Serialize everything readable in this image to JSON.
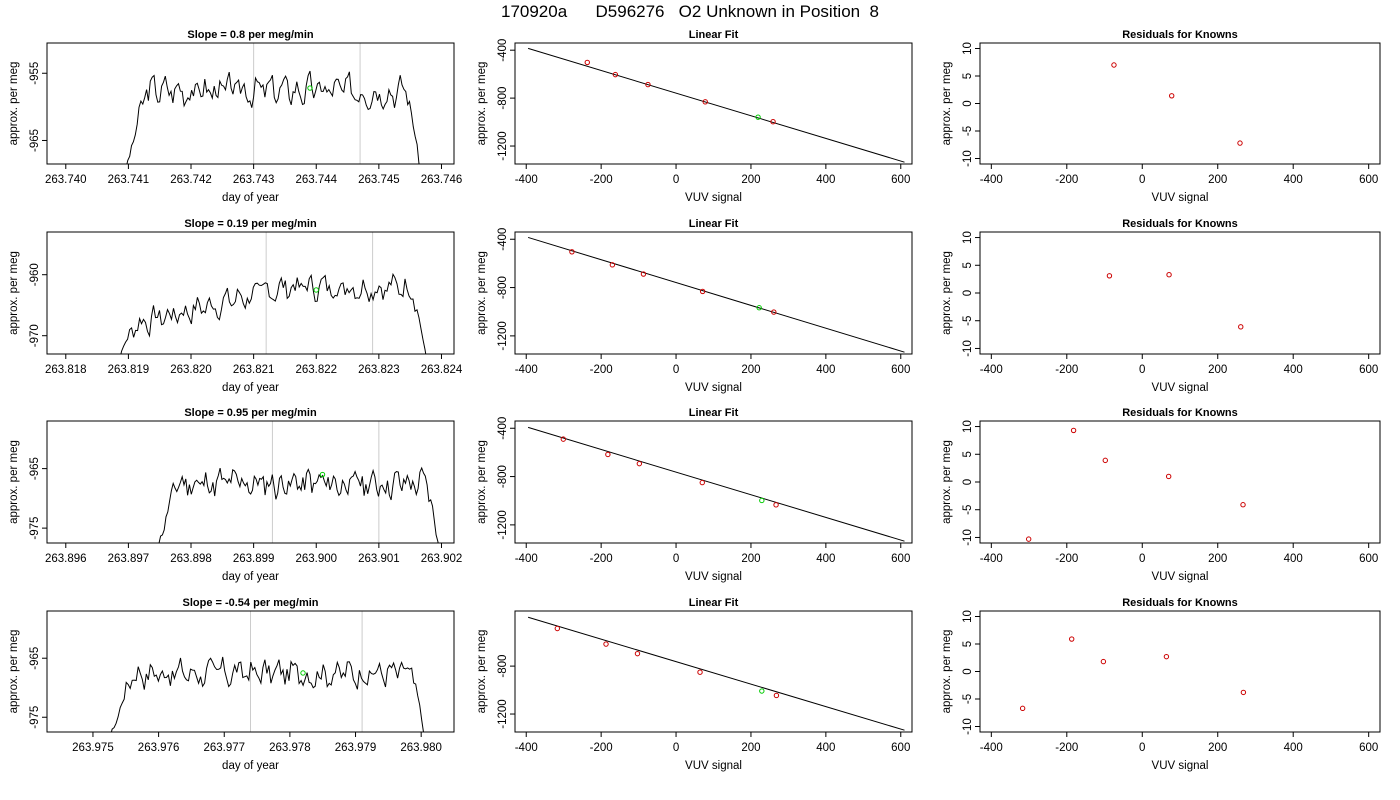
{
  "page": {
    "title": "170920a      D596276   O2 Unknown in Position  8"
  },
  "colors": {
    "trace": "#000000",
    "vline": "#cccccc",
    "marker": "#00cc00",
    "known": "#cc0000"
  },
  "chart_data": [
    {
      "type": "line",
      "row": 0,
      "col": 0,
      "title": "Slope =  0.8  per meg/min",
      "xlabel": "day of year",
      "ylabel": "approx. per meg",
      "xlim": [
        263.7397,
        263.7462
      ],
      "ylim": [
        -968.5,
        -950.5
      ],
      "xticks": [
        "263.740",
        "263.741",
        "263.742",
        "263.743",
        "263.744",
        "263.745",
        "263.746"
      ],
      "xtick_values": [
        263.74,
        263.741,
        263.742,
        263.743,
        263.744,
        263.745,
        263.746
      ],
      "yticks": [
        "-955",
        "-965"
      ],
      "ytick_values": [
        -955,
        -965
      ],
      "trace": {
        "start": 263.7409,
        "end": 263.7457,
        "base": -957.5,
        "amp": 2.6,
        "seed": 3,
        "n": 160
      },
      "vlines": [
        263.743,
        263.7447
      ],
      "marker": {
        "x": 263.7439,
        "y": -957.2
      }
    },
    {
      "type": "scatter",
      "row": 0,
      "col": 1,
      "title": "Linear Fit",
      "xlabel": "VUV signal",
      "ylabel": "approx. per meg",
      "xlim": [
        -430,
        630
      ],
      "ylim": [
        -1350,
        -340
      ],
      "xticks": [
        "-400",
        "-200",
        "0",
        "200",
        "400",
        "600"
      ],
      "xtick_values": [
        -400,
        -200,
        0,
        200,
        400,
        600
      ],
      "yticks": [
        "-400",
        "-800",
        "-1200"
      ],
      "ytick_values": [
        -400,
        -800,
        -1200
      ],
      "points": [
        {
          "x": -237,
          "y": -502
        },
        {
          "x": -162,
          "y": -604
        },
        {
          "x": -75,
          "y": -687
        },
        {
          "x": 78,
          "y": -831
        },
        {
          "x": 259,
          "y": -997
        }
      ],
      "unknown": {
        "x": 219,
        "y": -959
      },
      "fit": {
        "x0": -395,
        "y0": -385,
        "x1": 610,
        "y1": -1335
      }
    },
    {
      "type": "scatter",
      "row": 0,
      "col": 2,
      "title": "Residuals for Knowns",
      "xlabel": "VUV signal",
      "ylabel": "approx. per meg",
      "xlim": [
        -430,
        630
      ],
      "ylim": [
        -11,
        11
      ],
      "xticks": [
        "-400",
        "-200",
        "0",
        "200",
        "400",
        "600"
      ],
      "xtick_values": [
        -400,
        -200,
        0,
        200,
        400,
        600
      ],
      "yticks": [
        "10",
        "5",
        "0",
        "-5",
        "-10"
      ],
      "ytick_values": [
        10,
        5,
        0,
        -5,
        -10
      ],
      "points": [
        {
          "x": -75,
          "y": 7.0
        },
        {
          "x": 78,
          "y": 1.4
        },
        {
          "x": 259,
          "y": -7.2
        }
      ]
    },
    {
      "type": "line",
      "row": 1,
      "col": 0,
      "title": "Slope =  0.19  per meg/min",
      "xlabel": "day of year",
      "ylabel": "approx. per meg",
      "xlim": [
        263.8177,
        263.8242
      ],
      "ylim": [
        -973,
        -953
      ],
      "xticks": [
        "263.818",
        "263.819",
        "263.820",
        "263.821",
        "263.822",
        "263.823",
        "263.824"
      ],
      "xtick_values": [
        263.818,
        263.819,
        263.82,
        263.821,
        263.822,
        263.823,
        263.824
      ],
      "yticks": [
        "-960",
        "-970"
      ],
      "ytick_values": [
        -960,
        -970
      ],
      "trace": {
        "start": 263.8187,
        "end": 263.8238,
        "base": -962.0,
        "amp": 2.5,
        "seed": 7,
        "n": 160,
        "rise": 7
      },
      "vlines": [
        263.8212,
        263.8229
      ],
      "marker": {
        "x": 263.822,
        "y": -962.5
      }
    },
    {
      "type": "scatter",
      "row": 1,
      "col": 1,
      "title": "Linear Fit",
      "xlabel": "VUV signal",
      "ylabel": "approx. per meg",
      "xlim": [
        -430,
        630
      ],
      "ylim": [
        -1350,
        -340
      ],
      "xticks": [
        "-400",
        "-200",
        "0",
        "200",
        "400",
        "600"
      ],
      "xtick_values": [
        -400,
        -200,
        0,
        200,
        400,
        600
      ],
      "yticks": [
        "-400",
        "-800",
        "-1200"
      ],
      "ytick_values": [
        -400,
        -800,
        -1200
      ],
      "points": [
        {
          "x": -278,
          "y": -504
        },
        {
          "x": -170,
          "y": -612
        },
        {
          "x": -87,
          "y": -688
        },
        {
          "x": 71,
          "y": -832
        },
        {
          "x": 261,
          "y": -1003
        }
      ],
      "unknown": {
        "x": 222,
        "y": -967
      },
      "fit": {
        "x0": -395,
        "y0": -385,
        "x1": 610,
        "y1": -1335
      }
    },
    {
      "type": "scatter",
      "row": 1,
      "col": 2,
      "title": "Residuals for Knowns",
      "xlabel": "VUV signal",
      "ylabel": "approx. per meg",
      "xlim": [
        -430,
        630
      ],
      "ylim": [
        -11,
        11
      ],
      "xticks": [
        "-400",
        "-200",
        "0",
        "200",
        "400",
        "600"
      ],
      "xtick_values": [
        -400,
        -200,
        0,
        200,
        400,
        600
      ],
      "yticks": [
        "10",
        "5",
        "0",
        "-5",
        "-10"
      ],
      "ytick_values": [
        10,
        5,
        0,
        -5,
        -10
      ],
      "points": [
        {
          "x": -87,
          "y": 3.1
        },
        {
          "x": 71,
          "y": 3.3
        },
        {
          "x": 261,
          "y": -6.1
        }
      ]
    },
    {
      "type": "line",
      "row": 2,
      "col": 0,
      "title": "Slope =  0.95  per meg/min",
      "xlabel": "day of year",
      "ylabel": "approx. per meg",
      "xlim": [
        263.8957,
        263.9022
      ],
      "ylim": [
        -977.5,
        -957
      ],
      "xticks": [
        "263.896",
        "263.897",
        "263.898",
        "263.899",
        "263.900",
        "263.901",
        "263.902"
      ],
      "xtick_values": [
        263.896,
        263.897,
        263.898,
        263.899,
        263.9,
        263.901,
        263.902
      ],
      "yticks": [
        "-965",
        "-975"
      ],
      "ytick_values": [
        -965,
        -975
      ],
      "trace": {
        "start": 263.8974,
        "end": 263.902,
        "base": -967.5,
        "amp": 3.0,
        "seed": 11,
        "n": 160
      },
      "vlines": [
        263.8993,
        263.901
      ],
      "marker": {
        "x": 263.9001,
        "y": -966
      }
    },
    {
      "type": "scatter",
      "row": 2,
      "col": 1,
      "title": "Linear Fit",
      "xlabel": "VUV signal",
      "ylabel": "approx. per meg",
      "xlim": [
        -430,
        630
      ],
      "ylim": [
        -1350,
        -340
      ],
      "xticks": [
        "-400",
        "-200",
        "0",
        "200",
        "400",
        "600"
      ],
      "xtick_values": [
        -400,
        -200,
        0,
        200,
        400,
        600
      ],
      "yticks": [
        "-400",
        "-800",
        "-1200"
      ],
      "ytick_values": [
        -400,
        -800,
        -1200
      ],
      "points": [
        {
          "x": -301,
          "y": -490
        },
        {
          "x": -182,
          "y": -617
        },
        {
          "x": -98,
          "y": -693
        },
        {
          "x": 70,
          "y": -850
        },
        {
          "x": 267,
          "y": -1034
        }
      ],
      "unknown": {
        "x": 229,
        "y": -998
      },
      "fit": {
        "x0": -395,
        "y0": -393,
        "x1": 610,
        "y1": -1335
      }
    },
    {
      "type": "scatter",
      "row": 2,
      "col": 2,
      "title": "Residuals for Knowns",
      "xlabel": "VUV signal",
      "ylabel": "approx. per meg",
      "xlim": [
        -430,
        630
      ],
      "ylim": [
        -11,
        11
      ],
      "xticks": [
        "-400",
        "-200",
        "0",
        "200",
        "400",
        "600"
      ],
      "xtick_values": [
        -400,
        -200,
        0,
        200,
        400,
        600
      ],
      "yticks": [
        "10",
        "5",
        "0",
        "-5",
        "-10"
      ],
      "ytick_values": [
        10,
        5,
        0,
        -5,
        -10
      ],
      "points": [
        {
          "x": -301,
          "y": -10.3
        },
        {
          "x": -182,
          "y": 9.3
        },
        {
          "x": -98,
          "y": 3.9
        },
        {
          "x": 70,
          "y": 1.0
        },
        {
          "x": 267,
          "y": -4.1
        }
      ]
    },
    {
      "type": "line",
      "row": 3,
      "col": 0,
      "title": "Slope =  -0.54  per meg/min",
      "xlabel": "day of year",
      "ylabel": "approx. per meg",
      "xlim": [
        263.9743,
        263.9805
      ],
      "ylim": [
        -977.5,
        -957
      ],
      "xticks": [
        "263.975",
        "263.976",
        "263.977",
        "263.978",
        "263.979",
        "263.980"
      ],
      "xtick_values": [
        263.975,
        263.976,
        263.977,
        263.978,
        263.979,
        263.98
      ],
      "yticks": [
        "-965",
        "-975"
      ],
      "ytick_values": [
        -965,
        -975
      ],
      "trace": {
        "start": 263.9752,
        "end": 263.9801,
        "base": -967.5,
        "amp": 2.8,
        "seed": 17,
        "n": 160
      },
      "vlines": [
        263.9774,
        263.9791
      ],
      "marker": {
        "x": 263.9782,
        "y": -967.5
      }
    },
    {
      "type": "scatter",
      "row": 3,
      "col": 1,
      "title": "Linear Fit",
      "xlabel": "VUV signal",
      "ylabel": "approx. per meg",
      "xlim": [
        -430,
        630
      ],
      "ylim": [
        -1350,
        -340
      ],
      "xticks": [
        "-400",
        "-200",
        "0",
        "200",
        "400",
        "600"
      ],
      "xtick_values": [
        -400,
        -200,
        0,
        200,
        400,
        600
      ],
      "yticks": [
        "-800",
        "-1200"
      ],
      "ytick_values": [
        -800,
        -1200
      ],
      "points": [
        {
          "x": -317,
          "y": -486
        },
        {
          "x": -187,
          "y": -616
        },
        {
          "x": -103,
          "y": -696
        },
        {
          "x": 64,
          "y": -851
        },
        {
          "x": 268,
          "y": -1045
        }
      ],
      "unknown": {
        "x": 229,
        "y": -1008
      },
      "fit": {
        "x0": -395,
        "y0": -392,
        "x1": 610,
        "y1": -1335
      }
    },
    {
      "type": "scatter",
      "row": 3,
      "col": 2,
      "title": "Residuals for Knowns",
      "xlabel": "VUV signal",
      "ylabel": "approx. per meg",
      "xlim": [
        -430,
        630
      ],
      "ylim": [
        -11,
        11
      ],
      "xticks": [
        "-400",
        "-200",
        "0",
        "200",
        "400",
        "600"
      ],
      "xtick_values": [
        -400,
        -200,
        0,
        200,
        400,
        600
      ],
      "yticks": [
        "10",
        "5",
        "0",
        "-5",
        "-10"
      ],
      "ytick_values": [
        10,
        5,
        0,
        -5,
        -10
      ],
      "points": [
        {
          "x": -317,
          "y": -6.7
        },
        {
          "x": -187,
          "y": 5.9
        },
        {
          "x": -103,
          "y": 1.8
        },
        {
          "x": 64,
          "y": 2.7
        },
        {
          "x": 268,
          "y": -3.8
        }
      ]
    }
  ]
}
